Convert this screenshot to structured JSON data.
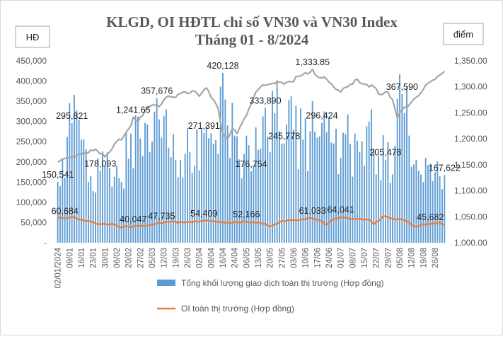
{
  "chart_data": {
    "type": "bar",
    "title": "KLGD, OI HĐTL chỉ số VN30 và VN30 Index",
    "subtitle": "Tháng 01 - 8/2024",
    "ylabel_left": "HĐ",
    "ylabel_right": "điểm",
    "ylim_left": [
      0,
      450000
    ],
    "ylim_right": [
      1000,
      1350
    ],
    "yticks_left": [
      "-",
      "50,000",
      "100,000",
      "150,000",
      "200,000",
      "250,000",
      "300,000",
      "350,000",
      "400,000",
      "450,000"
    ],
    "yticks_right": [
      "1,000.00",
      "1,050.00",
      "1,100.00",
      "1,150.00",
      "1,200.00",
      "1,250.00",
      "1,300.00",
      "1,350.00"
    ],
    "x_ticks": [
      "02/01/2024",
      "09/01",
      "16/01",
      "23/01",
      "30/01",
      "06/02",
      "20/02",
      "27/02",
      "05/03",
      "12/03",
      "19/03",
      "26/03",
      "02/04",
      "09/04",
      "16/04",
      "24/04",
      "06/05",
      "13/05",
      "20/05",
      "27/05",
      "03/06",
      "10/06",
      "17/06",
      "24/06",
      "01/07",
      "08/07",
      "15/07",
      "22/07",
      "29/07",
      "05/08",
      "12/08",
      "19/08",
      "26/08"
    ],
    "x_tick_positions": [
      0,
      5,
      10,
      15,
      20,
      25,
      30,
      35,
      40,
      45,
      50,
      55,
      60,
      65,
      70,
      75,
      80,
      85,
      90,
      95,
      100,
      105,
      110,
      115,
      120,
      125,
      130,
      135,
      140,
      145,
      150,
      155,
      160
    ],
    "n_points": 165,
    "series": [
      {
        "name": "Tổng khối lượng giao dịch toàn thị trường (Hợp đồng)",
        "kind": "bar",
        "axis": "left",
        "color": "#5b9bd5",
        "anchors": [
          [
            0,
            150541
          ],
          [
            4,
            262000
          ],
          [
            6,
            295821
          ],
          [
            10,
            255000
          ],
          [
            14,
            165000
          ],
          [
            18,
            178093
          ],
          [
            22,
            185000
          ],
          [
            27,
            150000
          ],
          [
            31,
            270000
          ],
          [
            36,
            215000
          ],
          [
            40,
            250000
          ],
          [
            42,
            357676
          ],
          [
            44,
            260000
          ],
          [
            46,
            330000
          ],
          [
            50,
            205000
          ],
          [
            54,
            220000
          ],
          [
            58,
            190000
          ],
          [
            62,
            271391
          ],
          [
            66,
            245000
          ],
          [
            70,
            420128
          ],
          [
            72,
            290000
          ],
          [
            75,
            265000
          ],
          [
            79,
            220000
          ],
          [
            82,
            176754
          ],
          [
            85,
            230000
          ],
          [
            88,
            333890
          ],
          [
            92,
            320000
          ],
          [
            96,
            245778
          ],
          [
            100,
            280000
          ],
          [
            104,
            255000
          ],
          [
            109,
            275000
          ],
          [
            112,
            296424
          ],
          [
            116,
            248000
          ],
          [
            120,
            210000
          ],
          [
            124,
            245000
          ],
          [
            128,
            225000
          ],
          [
            132,
            300000
          ],
          [
            136,
            215000
          ],
          [
            139,
            205478
          ],
          [
            143,
            240000
          ],
          [
            146,
            367590
          ],
          [
            149,
            265000
          ],
          [
            152,
            205000
          ],
          [
            156,
            210000
          ],
          [
            160,
            175000
          ],
          [
            164,
            167622
          ]
        ]
      },
      {
        "name": "OI toàn thị trường (Hợp đồng)",
        "kind": "line",
        "axis": "left",
        "color": "#ed7d31",
        "anchors": [
          [
            0,
            62000
          ],
          [
            3,
            60684
          ],
          [
            6,
            63500
          ],
          [
            8,
            60000
          ],
          [
            12,
            54000
          ],
          [
            16,
            48000
          ],
          [
            20,
            47500
          ],
          [
            24,
            45500
          ],
          [
            27,
            37000
          ],
          [
            29,
            41000
          ],
          [
            32,
            40047
          ],
          [
            36,
            42500
          ],
          [
            40,
            45000
          ],
          [
            44,
            47735
          ],
          [
            48,
            52000
          ],
          [
            53,
            50000
          ],
          [
            58,
            53500
          ],
          [
            62,
            54409
          ],
          [
            66,
            53000
          ],
          [
            70,
            51000
          ],
          [
            73,
            48000
          ],
          [
            76,
            51000
          ],
          [
            80,
            52166
          ],
          [
            84,
            49000
          ],
          [
            88,
            47500
          ],
          [
            90,
            40000
          ],
          [
            92,
            46000
          ],
          [
            96,
            53500
          ],
          [
            100,
            56000
          ],
          [
            104,
            58500
          ],
          [
            108,
            61033
          ],
          [
            111,
            55000
          ],
          [
            114,
            44000
          ],
          [
            116,
            55000
          ],
          [
            120,
            64041
          ],
          [
            124,
            58000
          ],
          [
            128,
            60000
          ],
          [
            132,
            57000
          ],
          [
            134,
            45000
          ],
          [
            138,
            66500
          ],
          [
            142,
            60000
          ],
          [
            146,
            57000
          ],
          [
            149,
            50000
          ],
          [
            151,
            41000
          ],
          [
            154,
            44000
          ],
          [
            158,
            45682
          ],
          [
            162,
            50000
          ],
          [
            164,
            45000
          ]
        ]
      },
      {
        "name": "VN30 Index",
        "kind": "line",
        "axis": "right",
        "color": "#a6a6a6",
        "anchors": [
          [
            0,
            1155
          ],
          [
            4,
            1163
          ],
          [
            8,
            1168
          ],
          [
            12,
            1172
          ],
          [
            16,
            1180
          ],
          [
            20,
            1165
          ],
          [
            24,
            1190
          ],
          [
            28,
            1205
          ],
          [
            31,
            1225
          ],
          [
            32,
            1241.65
          ],
          [
            34,
            1232
          ],
          [
            37,
            1255
          ],
          [
            40,
            1265
          ],
          [
            43,
            1262
          ],
          [
            46,
            1280
          ],
          [
            50,
            1280
          ],
          [
            53,
            1290
          ],
          [
            56,
            1288
          ],
          [
            58,
            1292
          ],
          [
            60,
            1282
          ],
          [
            63,
            1298
          ],
          [
            66,
            1275
          ],
          [
            68,
            1258
          ],
          [
            70,
            1210
          ],
          [
            72,
            1200
          ],
          [
            74,
            1220
          ],
          [
            76,
            1210
          ],
          [
            80,
            1245
          ],
          [
            84,
            1290
          ],
          [
            86,
            1300
          ],
          [
            90,
            1305
          ],
          [
            93,
            1310
          ],
          [
            96,
            1305
          ],
          [
            99,
            1310
          ],
          [
            102,
            1320
          ],
          [
            106,
            1325
          ],
          [
            108,
            1333.85
          ],
          [
            110,
            1320
          ],
          [
            114,
            1315
          ],
          [
            117,
            1300
          ],
          [
            120,
            1290
          ],
          [
            124,
            1305
          ],
          [
            127,
            1315
          ],
          [
            130,
            1305
          ],
          [
            134,
            1300
          ],
          [
            137,
            1285
          ],
          [
            140,
            1290
          ],
          [
            142,
            1275
          ],
          [
            144,
            1240
          ],
          [
            146,
            1255
          ],
          [
            149,
            1265
          ],
          [
            152,
            1280
          ],
          [
            155,
            1295
          ],
          [
            158,
            1310
          ],
          [
            161,
            1320
          ],
          [
            164,
            1330
          ]
        ]
      }
    ],
    "data_labels": [
      {
        "series": 0,
        "i": 0,
        "text": "150,541"
      },
      {
        "series": 0,
        "i": 6,
        "text": "295,821"
      },
      {
        "series": 0,
        "i": 18,
        "text": "178,093"
      },
      {
        "series": 0,
        "i": 42,
        "text": "357,676"
      },
      {
        "series": 0,
        "i": 62,
        "text": "271,391"
      },
      {
        "series": 0,
        "i": 70,
        "text": "420,128"
      },
      {
        "series": 0,
        "i": 82,
        "text": "176,754"
      },
      {
        "series": 0,
        "i": 88,
        "text": "333,890"
      },
      {
        "series": 0,
        "i": 96,
        "text": "245,778"
      },
      {
        "series": 0,
        "i": 112,
        "text": "296,424"
      },
      {
        "series": 0,
        "i": 139,
        "text": "205,478"
      },
      {
        "series": 0,
        "i": 146,
        "text": "367,590"
      },
      {
        "series": 0,
        "i": 164,
        "text": "167,622"
      },
      {
        "series": 1,
        "i": 3,
        "text": "60,684"
      },
      {
        "series": 1,
        "i": 32,
        "text": "40,047"
      },
      {
        "series": 1,
        "i": 44,
        "text": "47,735"
      },
      {
        "series": 1,
        "i": 62,
        "text": "54,409"
      },
      {
        "series": 1,
        "i": 80,
        "text": "52,166"
      },
      {
        "series": 1,
        "i": 108,
        "text": "61,033"
      },
      {
        "series": 1,
        "i": 120,
        "text": "64,041"
      },
      {
        "series": 1,
        "i": 158,
        "text": "45,682"
      },
      {
        "series": 2,
        "i": 32,
        "text": "1,241.65"
      },
      {
        "series": 2,
        "i": 108,
        "text": "1,333.85"
      }
    ],
    "legend_position": "bottom",
    "grid": false
  }
}
